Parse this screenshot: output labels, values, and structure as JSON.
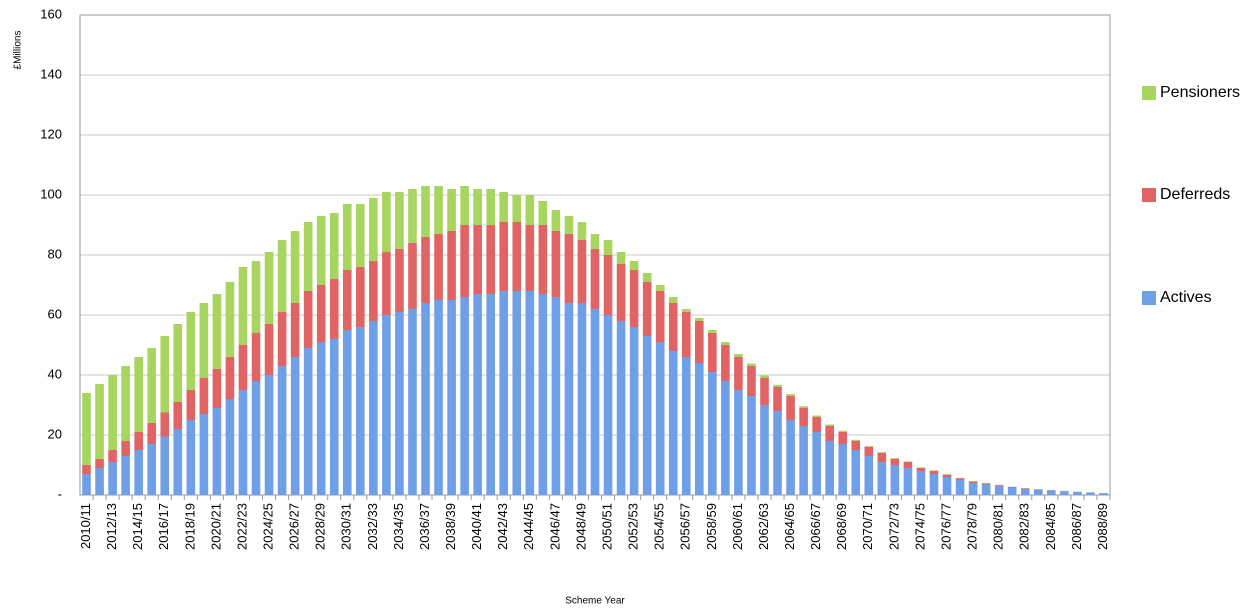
{
  "chart_data": {
    "type": "stacked_bar",
    "y_label": "£Millions",
    "x_label": "Scheme Year",
    "categories": [
      "2010/11",
      null,
      "2012/13",
      null,
      "2014/15",
      null,
      "2016/17",
      null,
      "2018/19",
      null,
      "2020/21",
      null,
      "2022/23",
      null,
      "2024/25",
      null,
      "2026/27",
      null,
      "2028/29",
      null,
      "2030/31",
      null,
      "2032/33",
      null,
      "2034/35",
      null,
      "2036/37",
      null,
      "2038/39",
      null,
      "2040/41",
      null,
      "2042/43",
      null,
      "2044/45",
      null,
      "2046/47",
      null,
      "2048/49",
      null,
      "2050/51",
      null,
      "2052/53",
      null,
      "2054/55",
      null,
      "2056/57",
      null,
      "2058/59",
      null,
      "2060/61",
      null,
      "2062/63",
      null,
      "2064/65",
      null,
      "2066/67",
      null,
      "2068/69",
      null,
      "2070/71",
      null,
      "2072/73",
      null,
      "2074/75",
      null,
      "2076/77",
      null,
      "2078/79",
      null,
      "2080/81",
      null,
      "2082/83",
      null,
      "2084/85",
      null,
      "2086/87",
      null,
      "2088/89"
    ],
    "series": [
      {
        "name": "Actives",
        "color": "#6f9fe6",
        "values": [
          7,
          9,
          11,
          13,
          15,
          17,
          19.5,
          22,
          25,
          27,
          29,
          32,
          35,
          38,
          40,
          43,
          46,
          49,
          51,
          52,
          55,
          56,
          58,
          60,
          61,
          62,
          64,
          65,
          65,
          66,
          67,
          67,
          68,
          68,
          68,
          67,
          66,
          64,
          64,
          62,
          60,
          58,
          56,
          53,
          51,
          48,
          46,
          44,
          41,
          38,
          35,
          33,
          30,
          28,
          25,
          23,
          21,
          18,
          17,
          15,
          13,
          11,
          10,
          9,
          8,
          7,
          6,
          5,
          4,
          3.5,
          3,
          2.5,
          2,
          1.8,
          1.5,
          1.2,
          1,
          0.8,
          0.6
        ]
      },
      {
        "name": "Deferreds",
        "color": "#e06464",
        "values": [
          3,
          3,
          4,
          5,
          6,
          7,
          8,
          9,
          10,
          12,
          13,
          14,
          15,
          16,
          17,
          18,
          18,
          19,
          19,
          20,
          20,
          20,
          20,
          21,
          21,
          22,
          22,
          22,
          23,
          24,
          23,
          23,
          23,
          23,
          22,
          23,
          22,
          23,
          21,
          20,
          20,
          19,
          19,
          18,
          17,
          16,
          15,
          14,
          13,
          12,
          11,
          10,
          9,
          8,
          8,
          6,
          5,
          5,
          4,
          3,
          3,
          3,
          2,
          2,
          1,
          1,
          0.8,
          0.6,
          0.5,
          0.4,
          0.3,
          0.2,
          0.2,
          0.1,
          0.1,
          0.1,
          0.05,
          0.05,
          0.05
        ]
      },
      {
        "name": "Pensioners",
        "color": "#a8d460",
        "values": [
          24,
          25,
          25,
          25,
          25,
          25,
          25.5,
          26,
          26,
          25,
          25,
          25,
          26,
          24,
          24,
          24,
          24,
          23,
          23,
          22,
          22,
          21,
          21,
          20,
          19,
          18,
          17,
          16,
          14,
          13,
          12,
          12,
          10,
          9,
          10,
          8,
          7,
          6,
          6,
          5,
          5,
          4,
          3,
          3,
          2,
          2,
          1,
          1,
          1,
          1,
          1,
          0.8,
          0.8,
          0.7,
          0.6,
          0.6,
          0.5,
          0.5,
          0.4,
          0.4,
          0.3,
          0.3,
          0.3,
          0.2,
          0.2,
          0.2,
          0.1,
          0.1,
          0.1,
          0.1,
          0.1,
          0.1,
          0.1,
          0.1,
          0.1,
          0.1,
          0.1,
          0.05,
          0.05
        ]
      }
    ],
    "ylim": [
      0,
      160
    ],
    "yticks": [
      {
        "value": 0,
        "label": "-"
      },
      20,
      40,
      60,
      80,
      100,
      120,
      140,
      160
    ],
    "grid": true,
    "legend": "right"
  }
}
